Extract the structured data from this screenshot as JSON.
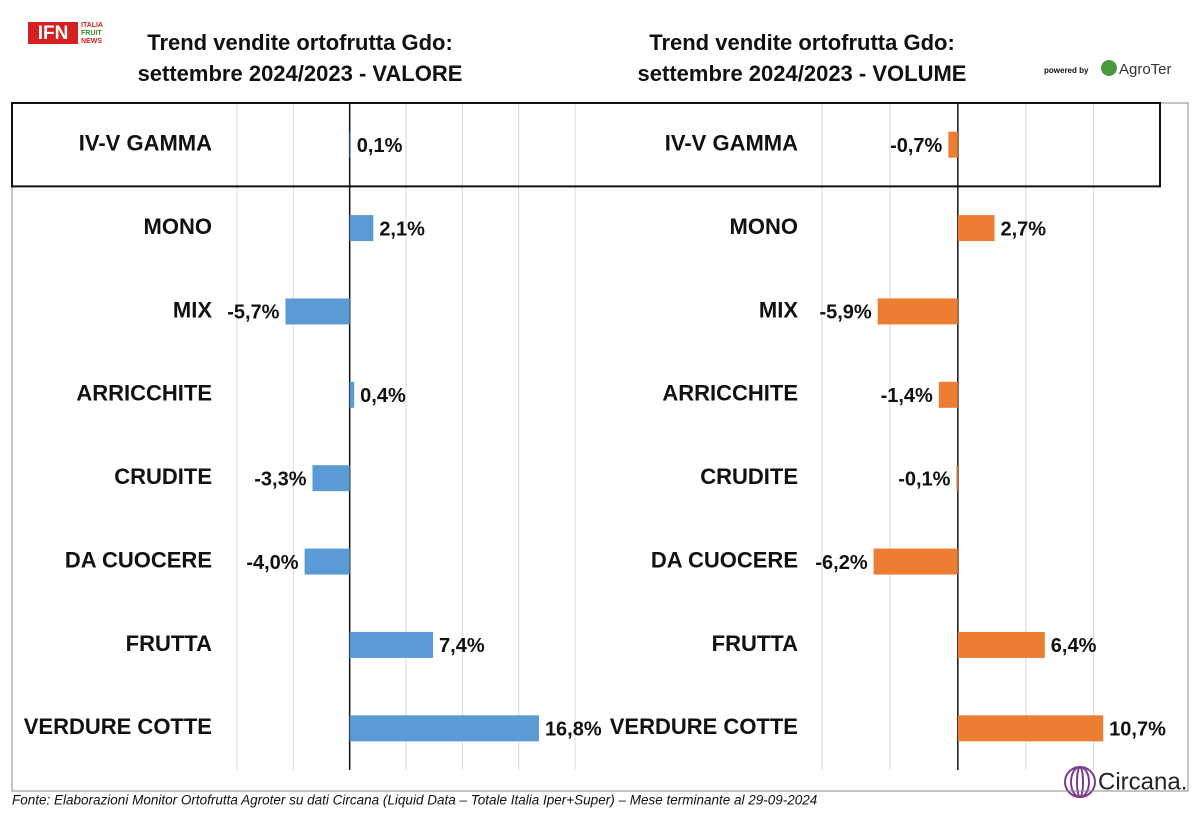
{
  "header": {
    "logo": "IFN",
    "logo_lines": [
      "ITALIA",
      "FRUIT",
      "NEWS"
    ],
    "powered_by": "powered by",
    "partner": "AgroTer",
    "brand": "Circana."
  },
  "chart_data": [
    {
      "type": "hbar",
      "title": [
        "Trend vendite ortofrutta Gdo:",
        "settembre 2024/2023 - VALORE"
      ],
      "categories": [
        "IV-V GAMMA",
        "MONO",
        "MIX",
        "ARRICCHITE",
        "CRUDITE",
        "DA CUOCERE",
        "FRUTTA",
        "VERDURE COTTE"
      ],
      "values": [
        0.1,
        2.1,
        -5.7,
        0.4,
        -3.3,
        -4.0,
        7.4,
        16.8
      ],
      "value_labels": [
        "0,1%",
        "2,1%",
        "-5,7%",
        "0,4%",
        "-3,3%",
        "-4,0%",
        "7,4%",
        "16,8%"
      ],
      "color": "#5b9bd5",
      "xlim": [
        -10,
        20
      ],
      "xticks": [
        -10,
        -5,
        0,
        5,
        10,
        15,
        20
      ],
      "grid": true
    },
    {
      "type": "hbar",
      "title": [
        "Trend vendite ortofrutta Gdo:",
        "settembre 2024/2023 - VOLUME"
      ],
      "categories": [
        "IV-V GAMMA",
        "MONO",
        "MIX",
        "ARRICCHITE",
        "CRUDITE",
        "DA CUOCERE",
        "FRUTTA",
        "VERDURE COTTE"
      ],
      "values": [
        -0.7,
        2.7,
        -5.9,
        -1.4,
        -0.1,
        -6.2,
        6.4,
        10.7
      ],
      "value_labels": [
        "-0,7%",
        "2,7%",
        "-5,9%",
        "-1,4%",
        "-0,1%",
        "-6,2%",
        "6,4%",
        "10,7%"
      ],
      "color": "#ed7d31",
      "xlim": [
        -10,
        14
      ],
      "xticks": [
        -10,
        -5,
        0,
        5,
        10
      ],
      "grid": true
    }
  ],
  "source": "Fonte: Elaborazioni Monitor Ortofrutta Agroter su dati Circana (Liquid Data – Totale Italia Iper+Super) – Mese terminante al 29-09-2024"
}
